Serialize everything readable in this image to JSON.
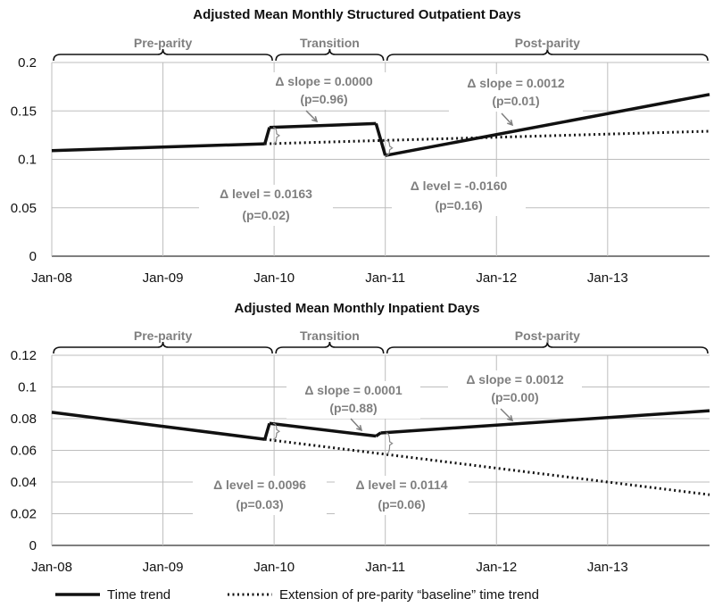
{
  "chart_data": [
    {
      "type": "line",
      "title": "Adjusted Mean Monthly Structured Outpatient Days",
      "x_ticks": [
        "Jan-08",
        "Jan-09",
        "Jan-10",
        "Jan-11",
        "Jan-12",
        "Jan-13"
      ],
      "x_range_months": [
        0,
        71
      ],
      "ylim": [
        0,
        0.2
      ],
      "y_ticks": [
        "0",
        "0.05",
        "0.1",
        "0.15",
        "0.2"
      ],
      "y_tick_values": [
        0,
        0.05,
        0.1,
        0.15,
        0.2
      ],
      "grid": true,
      "periods": [
        "Pre-parity",
        "Transition",
        "Post-parity"
      ],
      "series": [
        {
          "name": "Time trend",
          "style": "solid",
          "segments": [
            [
              [
                0,
                0.109
              ],
              [
                23,
                0.116
              ]
            ],
            [
              [
                23.5,
                0.133
              ],
              [
                35,
                0.137
              ]
            ],
            [
              [
                36,
                0.104
              ],
              [
                71,
                0.167
              ]
            ]
          ]
        },
        {
          "name": "Extension of pre-parity “baseline” time trend",
          "style": "dotted",
          "segments": [
            [
              [
                23,
                0.116
              ],
              [
                71,
                0.129
              ]
            ]
          ]
        }
      ],
      "annotations": {
        "slope_transition": {
          "text": "Δ slope = 0.0000",
          "p": "(p=0.96)"
        },
        "slope_post": {
          "text": "Δ slope = 0.0012",
          "p": "(p=0.01)"
        },
        "level_transition": {
          "text": "Δ level = 0.0163",
          "p": "(p=0.02)"
        },
        "level_post": {
          "text": "Δ level = -0.0160",
          "p": "(p=0.16)"
        }
      }
    },
    {
      "type": "line",
      "title": "Adjusted Mean Monthly Inpatient Days",
      "x_ticks": [
        "Jan-08",
        "Jan-09",
        "Jan-10",
        "Jan-11",
        "Jan-12",
        "Jan-13"
      ],
      "x_range_months": [
        0,
        71
      ],
      "ylim": [
        0,
        0.12
      ],
      "y_ticks": [
        "0",
        "0.02",
        "0.04",
        "0.06",
        "0.08",
        "0.1",
        "0.12"
      ],
      "y_tick_values": [
        0,
        0.02,
        0.04,
        0.06,
        0.08,
        0.1,
        0.12
      ],
      "grid": true,
      "periods": [
        "Pre-parity",
        "Transition",
        "Post-parity"
      ],
      "series": [
        {
          "name": "Time trend",
          "style": "solid",
          "segments": [
            [
              [
                0,
                0.084
              ],
              [
                23,
                0.067
              ]
            ],
            [
              [
                23.5,
                0.077
              ],
              [
                35,
                0.069
              ]
            ],
            [
              [
                35.5,
                0.071
              ],
              [
                71,
                0.085
              ]
            ]
          ]
        },
        {
          "name": "Extension of pre-parity “baseline” time trend",
          "style": "dotted",
          "segments": [
            [
              [
                23,
                0.067
              ],
              [
                71,
                0.032
              ]
            ]
          ]
        }
      ],
      "annotations": {
        "slope_transition": {
          "text": "Δ slope = 0.0001",
          "p": "(p=0.88)"
        },
        "slope_post": {
          "text": "Δ slope = 0.0012",
          "p": "(p=0.00)"
        },
        "level_transition": {
          "text": "Δ level = 0.0096",
          "p": "(p=0.03)"
        },
        "level_post": {
          "text": "Δ level = 0.0114",
          "p": "(p=0.06)"
        }
      }
    }
  ],
  "legend": {
    "time_trend": "Time trend",
    "baseline": "Extension of pre-parity “baseline” time trend"
  },
  "colors": {
    "line": "#111111",
    "annotation": "#7f7f7f",
    "grid": "#bdbdbd"
  }
}
